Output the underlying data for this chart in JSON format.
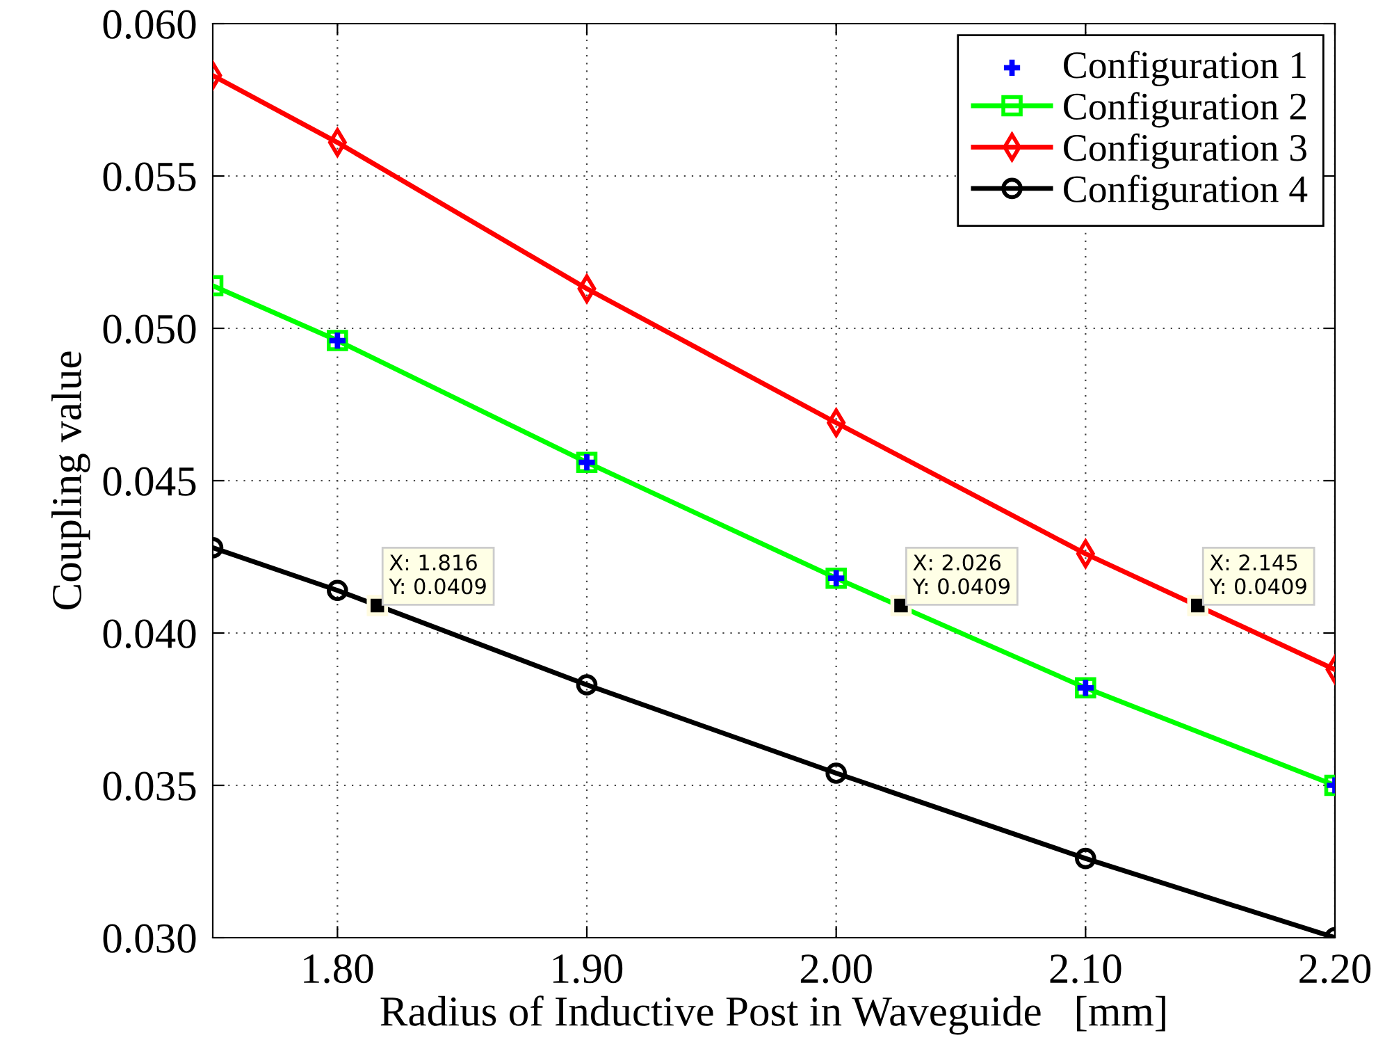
{
  "chart_data": {
    "type": "line",
    "xlabel": "Radius of Inductive Post in Waveguide   [mm]",
    "ylabel": "Coupling value",
    "xlim": [
      1.75,
      2.2
    ],
    "ylim": [
      0.03,
      0.06
    ],
    "xticks": [
      {
        "value": 1.8,
        "label": "1.80"
      },
      {
        "value": 1.9,
        "label": "1.90"
      },
      {
        "value": 2.0,
        "label": "2.00"
      },
      {
        "value": 2.1,
        "label": "2.10"
      },
      {
        "value": 2.2,
        "label": "2.20"
      }
    ],
    "yticks": [
      {
        "value": 0.03,
        "label": "0.030"
      },
      {
        "value": 0.035,
        "label": "0.035"
      },
      {
        "value": 0.04,
        "label": "0.040"
      },
      {
        "value": 0.045,
        "label": "0.045"
      },
      {
        "value": 0.05,
        "label": "0.050"
      },
      {
        "value": 0.055,
        "label": "0.055"
      },
      {
        "value": 0.06,
        "label": "0.060"
      }
    ],
    "grid": true,
    "legend": "top right",
    "series": [
      {
        "name": "Configuration 1",
        "type": "scatter",
        "marker": "cross",
        "color": "#0000ff",
        "x": [
          1.8,
          1.9,
          2.0,
          2.1,
          2.2
        ],
        "values": [
          0.0496,
          0.0456,
          0.0418,
          0.0382,
          0.035
        ]
      },
      {
        "name": "Configuration 2",
        "marker": "square",
        "color": "#00ff00",
        "x": [
          1.75,
          1.8,
          1.9,
          2.0,
          2.1,
          2.2
        ],
        "values": [
          0.0514,
          0.0496,
          0.0456,
          0.0418,
          0.0382,
          0.035
        ]
      },
      {
        "name": "Configuration 3",
        "marker": "diamond",
        "color": "#ff0000",
        "x": [
          1.75,
          1.8,
          1.9,
          2.0,
          2.1,
          2.2
        ],
        "values": [
          0.0583,
          0.0561,
          0.0513,
          0.0469,
          0.0426,
          0.0388
        ]
      },
      {
        "name": "Configuration 4",
        "marker": "circle",
        "color": "#000000",
        "x": [
          1.75,
          1.8,
          1.9,
          2.0,
          2.1,
          2.2
        ],
        "values": [
          0.0428,
          0.0414,
          0.0383,
          0.0354,
          0.0326,
          0.03
        ]
      }
    ],
    "annotations": [
      {
        "text": "X: 1.816\nY: 0.0409",
        "x": 1.816,
        "y": 0.0409
      },
      {
        "text": "X: 2.026\nY: 0.0409",
        "x": 2.026,
        "y": 0.0409
      },
      {
        "text": "X: 2.145\nY: 0.0409",
        "x": 2.145,
        "y": 0.0409
      }
    ]
  }
}
